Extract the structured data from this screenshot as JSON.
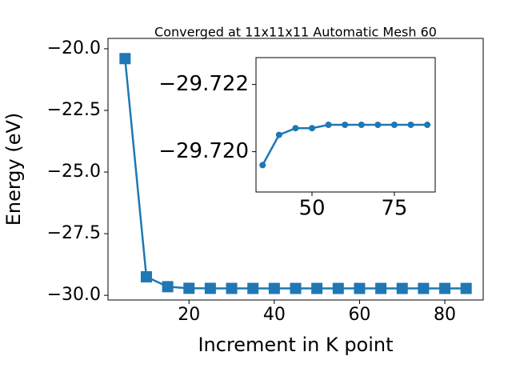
{
  "chart_data": [
    {
      "type": "line",
      "title": "Converged at 11x11x11 Automatic Mesh 60",
      "x_label": "Increment in K point",
      "y_label": "Energy (eV)",
      "x": [
        5,
        10,
        15,
        20,
        25,
        30,
        35,
        40,
        45,
        50,
        55,
        60,
        65,
        70,
        75,
        80,
        85
      ],
      "values": [
        -20.4,
        -29.25,
        -29.65,
        -29.715,
        -29.718,
        -29.719,
        -29.7196,
        -29.7205,
        -29.7207,
        -29.7207,
        -29.7208,
        -29.7208,
        -29.7208,
        -29.7208,
        -29.7208,
        -29.7208,
        -29.7208
      ],
      "color": "#1f77b4",
      "marker": "square",
      "xlim": [
        1,
        89
      ],
      "xticks": [
        20,
        40,
        60,
        80
      ],
      "ylim": [
        -30.19,
        -19.58
      ],
      "yticks": [
        {
          "value": -30,
          "label": "−30.0"
        },
        {
          "value": -27.5,
          "label": "−27.5"
        },
        {
          "value": -25,
          "label": "−25.0"
        },
        {
          "value": -22.5,
          "label": "−22.5"
        },
        {
          "value": -20,
          "label": "−20.0"
        }
      ]
    },
    {
      "type": "line",
      "x": [
        35,
        40,
        45,
        50,
        55,
        60,
        65,
        70,
        75,
        80,
        85
      ],
      "values": [
        -29.7196,
        -29.7205,
        -29.7207,
        -29.7207,
        -29.7208,
        -29.7208,
        -29.7208,
        -29.7208,
        -29.7208,
        -29.7208,
        -29.7208
      ],
      "color": "#1f77b4",
      "marker": "circle",
      "xlim": [
        33,
        87.4
      ],
      "xticks": [
        50,
        75
      ],
      "ylim": [
        -29.7188,
        -29.7228
      ],
      "yticks": [
        {
          "value": -29.72,
          "label": "−29.720"
        },
        {
          "value": -29.722,
          "label": "−29.722"
        }
      ]
    }
  ]
}
